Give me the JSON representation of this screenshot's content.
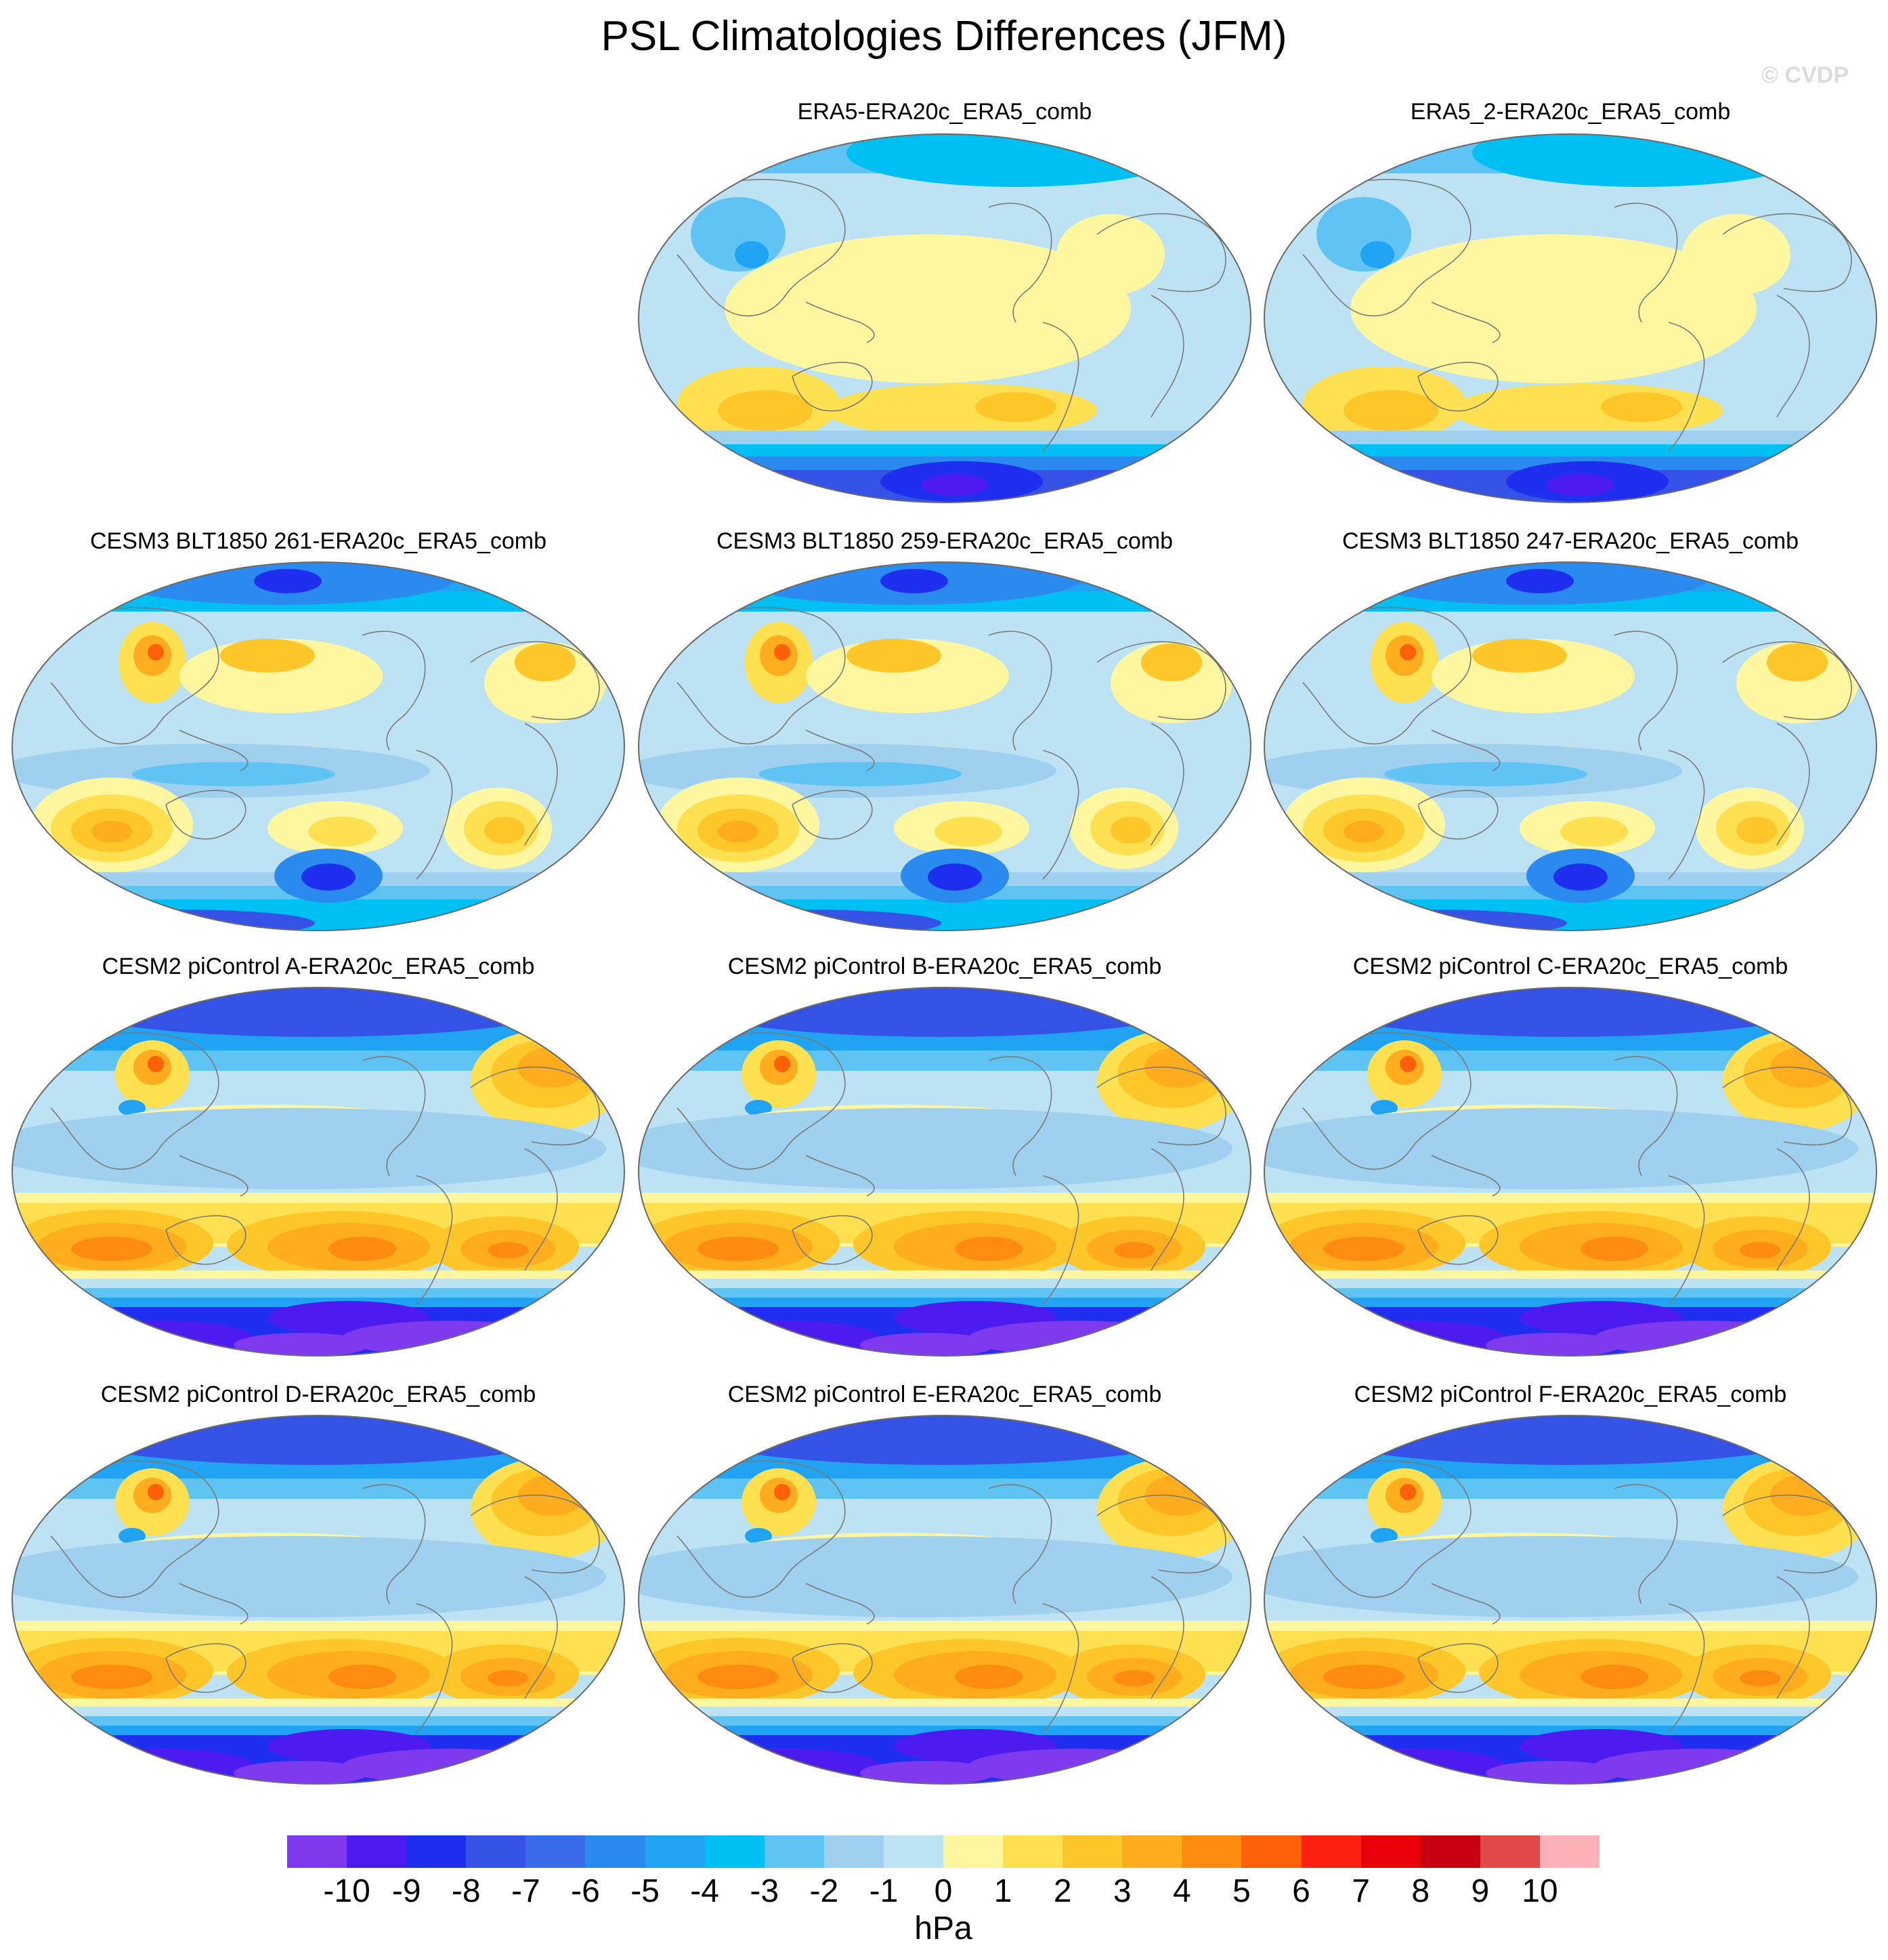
{
  "title": "PSL Climatologies Differences (JFM)",
  "watermark": "© CVDP",
  "colorbar": {
    "units": "hPa",
    "labels": [
      "-10",
      "-9",
      "-8",
      "-7",
      "-6",
      "-5",
      "-4",
      "-3",
      "-2",
      "-1",
      "0",
      "1",
      "2",
      "3",
      "4",
      "5",
      "6",
      "7",
      "8",
      "9",
      "10"
    ],
    "colors": [
      "#7f3aef",
      "#4d1af0",
      "#1e2ff0",
      "#3552e6",
      "#3a6cec",
      "#2a8aef",
      "#1fa3f2",
      "#00bff2",
      "#5fc3f3",
      "#9fd0ef",
      "#bde2f4",
      "#fff7a0",
      "#ffe050",
      "#ffc62a",
      "#ffac1e",
      "#ff8c10",
      "#ff6008",
      "#fe2010",
      "#e80008",
      "#c80010",
      "#e24a4a",
      "#ffb0b8"
    ]
  },
  "panels": [
    {
      "id": "era5",
      "title": "ERA5-ERA20c_ERA5_comb"
    },
    {
      "id": "era5_2",
      "title": "ERA5_2-ERA20c_ERA5_comb"
    },
    {
      "id": "cesm3_261",
      "title": "CESM3 BLT1850 261-ERA20c_ERA5_comb"
    },
    {
      "id": "cesm3_259",
      "title": "CESM3 BLT1850 259-ERA20c_ERA5_comb"
    },
    {
      "id": "cesm3_247",
      "title": "CESM3 BLT1850 247-ERA20c_ERA5_comb"
    },
    {
      "id": "cesm2_a",
      "title": "CESM2 piControl A-ERA20c_ERA5_comb"
    },
    {
      "id": "cesm2_b",
      "title": "CESM2 piControl B-ERA20c_ERA5_comb"
    },
    {
      "id": "cesm2_c",
      "title": "CESM2 piControl C-ERA20c_ERA5_comb"
    },
    {
      "id": "cesm2_d",
      "title": "CESM2 piControl D-ERA20c_ERA5_comb"
    },
    {
      "id": "cesm2_e",
      "title": "CESM2 piControl E-ERA20c_ERA5_comb"
    },
    {
      "id": "cesm2_f",
      "title": "CESM2 piControl F-ERA20c_ERA5_comb"
    }
  ]
}
